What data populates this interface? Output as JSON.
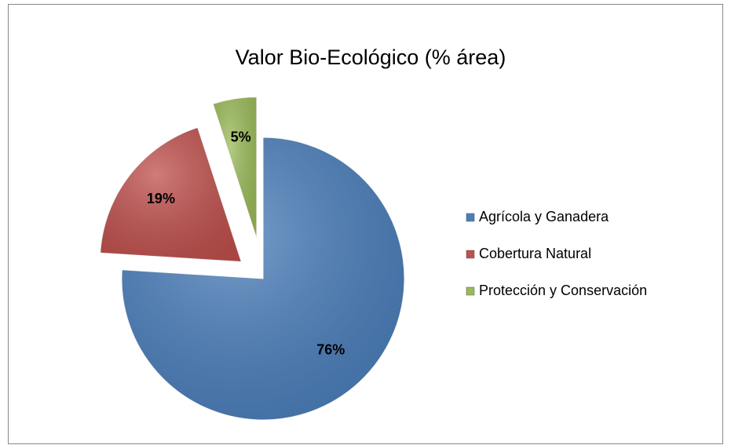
{
  "chart_data": {
    "type": "pie",
    "title": "Valor Bio-Ecológico (% área)",
    "categories": [
      "Agrícola y Ganadera",
      "Cobertura Natural",
      "Protección y Conservación"
    ],
    "values": [
      76,
      19,
      5
    ],
    "value_labels": [
      "76%",
      "19%",
      "5%"
    ],
    "colors": [
      "#4a7ebb",
      "#c0504d",
      "#9bbb59"
    ],
    "legend": "right"
  }
}
